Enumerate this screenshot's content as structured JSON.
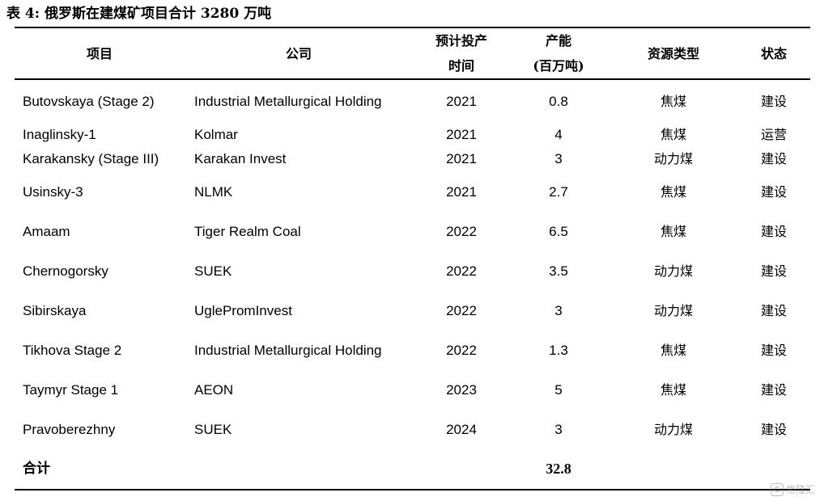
{
  "caption": "表 4: 俄罗斯在建煤矿项目合计 3280 万吨",
  "headers": {
    "project": "项目",
    "company": "公司",
    "year_line1": "预计投产",
    "year_line2": "时间",
    "capacity_line1": "产能",
    "capacity_line2": "(百万吨)",
    "type": "资源类型",
    "status": "状态"
  },
  "rows": [
    {
      "project": "Butovskaya (Stage 2)",
      "company": "Industrial Metallurgical Holding",
      "year": "2021",
      "capacity": "0.8",
      "type": "焦煤",
      "status": "建设"
    },
    {
      "project": "Inaglinsky-1",
      "company": "Kolmar",
      "year": "2021",
      "capacity": "4",
      "type": "焦煤",
      "status": "运营"
    },
    {
      "project": "Karakansky (Stage III)",
      "company": "Karakan Invest",
      "year": "2021",
      "capacity": "3",
      "type": "动力煤",
      "status": "建设"
    },
    {
      "project": "Usinsky-3",
      "company": "NLMK",
      "year": "2021",
      "capacity": "2.7",
      "type": "焦煤",
      "status": "建设"
    },
    {
      "project": "Amaam",
      "company": "Tiger Realm Coal",
      "year": "2022",
      "capacity": "6.5",
      "type": "焦煤",
      "status": "建设"
    },
    {
      "project": "Chernogorsky",
      "company": "SUEK",
      "year": "2022",
      "capacity": "3.5",
      "type": "动力煤",
      "status": "建设"
    },
    {
      "project": "Sibirskaya",
      "company": "UglePromInvest",
      "year": "2022",
      "capacity": "3",
      "type": "动力煤",
      "status": "建设"
    },
    {
      "project": "Tikhova Stage 2",
      "company": "Industrial Metallurgical Holding",
      "year": "2022",
      "capacity": "1.3",
      "type": "焦煤",
      "status": "建设"
    },
    {
      "project": "Taymyr Stage 1",
      "company": "AEON",
      "year": "2023",
      "capacity": "5",
      "type": "焦煤",
      "status": "建设"
    },
    {
      "project": "Pravoberezhny",
      "company": "SUEK",
      "year": "2024",
      "capacity": "3",
      "type": "动力煤",
      "status": "建设"
    }
  ],
  "total": {
    "label": "合计",
    "capacity": "32.8"
  },
  "watermark": {
    "text": "格隆汇",
    "icon": "gelonghui-logo-icon"
  }
}
